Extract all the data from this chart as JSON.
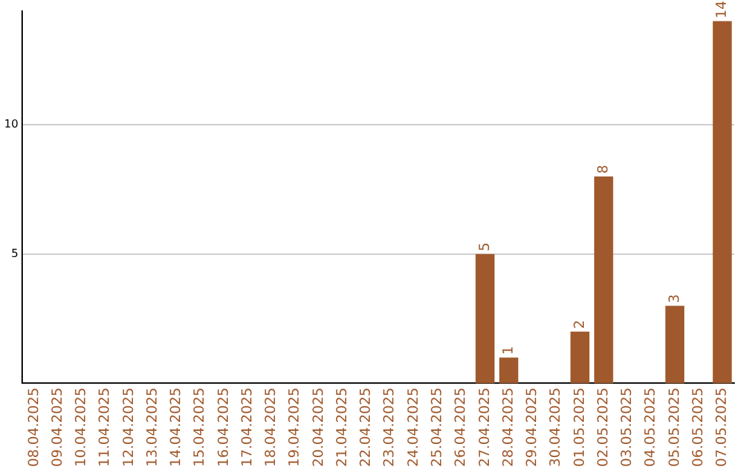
{
  "chart_data": {
    "type": "bar",
    "categories": [
      "08.04.2025",
      "09.04.2025",
      "10.04.2025",
      "11.04.2025",
      "12.04.2025",
      "13.04.2025",
      "14.04.2025",
      "15.04.2025",
      "16.04.2025",
      "17.04.2025",
      "18.04.2025",
      "19.04.2025",
      "20.04.2025",
      "21.04.2025",
      "22.04.2025",
      "23.04.2025",
      "24.04.2025",
      "25.04.2025",
      "26.04.2025",
      "27.04.2025",
      "28.04.2025",
      "29.04.2025",
      "30.04.2025",
      "01.05.2025",
      "02.05.2025",
      "03.05.2025",
      "04.05.2025",
      "05.05.2025",
      "06.05.2025",
      "07.05.2025"
    ],
    "values": [
      0,
      0,
      0,
      0,
      0,
      0,
      0,
      0,
      0,
      0,
      0,
      0,
      0,
      0,
      0,
      0,
      0,
      0,
      0,
      5,
      1,
      0,
      0,
      2,
      8,
      0,
      0,
      3,
      0,
      14
    ],
    "value_labels": [
      null,
      null,
      null,
      null,
      null,
      null,
      null,
      null,
      null,
      null,
      null,
      null,
      null,
      null,
      null,
      null,
      null,
      null,
      null,
      "5",
      "1",
      null,
      null,
      "2",
      "8",
      null,
      null,
      "3",
      null,
      "14"
    ],
    "color": "#a0592c",
    "ylim": [
      0,
      14.4
    ],
    "yticks": [
      5,
      10
    ],
    "grid": "y",
    "legend": false
  }
}
